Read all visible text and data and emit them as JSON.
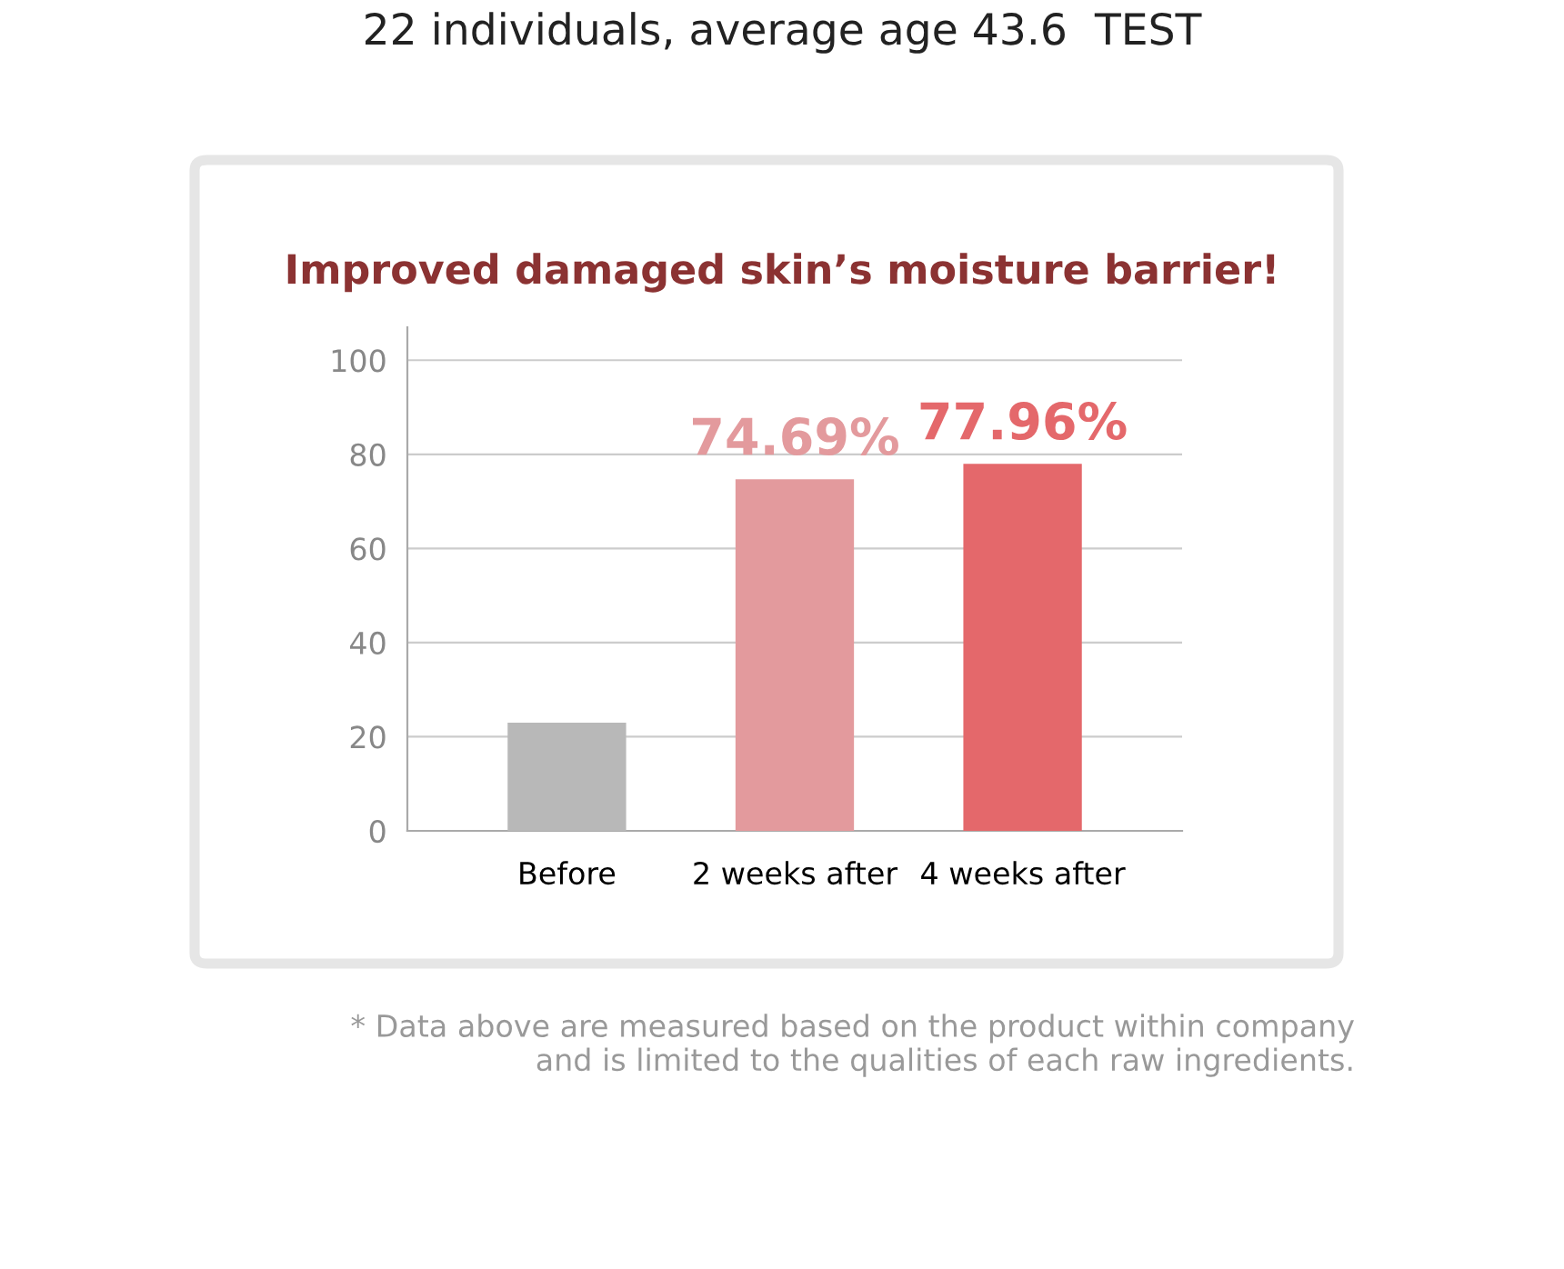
{
  "chart_data": {
    "type": "bar",
    "title": "22 individuals, average age 43.6  TEST",
    "subtitle": "Improved damaged skin’s moisture barrier!",
    "categories": [
      "Before",
      "2 weeks after",
      "4 weeks after"
    ],
    "values": [
      23,
      74.69,
      77.96
    ],
    "value_labels": [
      null,
      "74.69%",
      "77.96%"
    ],
    "colors": [
      "#b8b8b8",
      "#e39a9d",
      "#e4686b"
    ],
    "ylim": [
      0,
      107
    ],
    "yticks": [
      0,
      20,
      40,
      60,
      80,
      100
    ],
    "grid": "y",
    "annotations": [
      "* Data above are measured based on the product within company\nand is limited to the qualities of each raw ingredients."
    ]
  }
}
